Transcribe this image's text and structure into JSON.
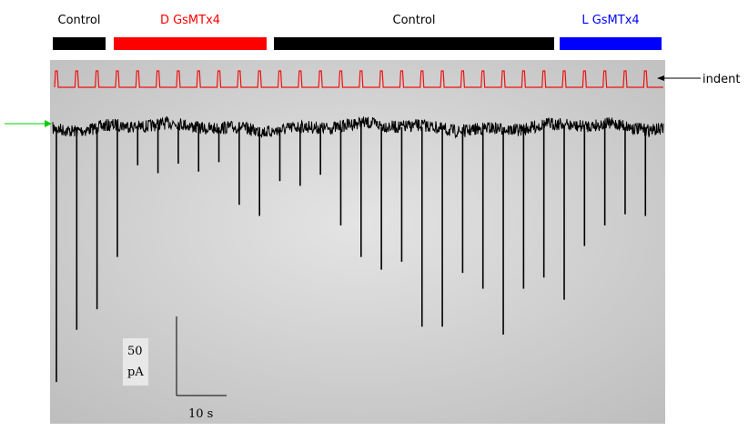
{
  "header": {
    "segments": [
      {
        "label": "Control",
        "color": "#000000"
      },
      {
        "label": "D GsMTx4",
        "color": "#ff0000"
      },
      {
        "label": "Control",
        "color": "#000000"
      },
      {
        "label": "L GsMTx4",
        "color": "#0000ff"
      }
    ]
  },
  "indent_label": "indent",
  "scale_bar": {
    "current_value": "50",
    "current_unit": "pA",
    "time": "10 s"
  },
  "trace": {
    "spike_times": [
      0,
      4,
      8,
      12,
      16,
      20,
      24,
      28,
      32,
      36,
      40,
      44,
      48,
      52,
      56,
      60,
      64,
      68,
      72,
      76,
      80,
      84,
      88,
      92,
      96,
      100,
      104,
      108,
      112,
      116
    ],
    "spike_amplitudes": [
      161,
      128,
      115,
      82,
      24,
      29,
      23,
      28,
      22,
      49,
      56,
      34,
      37,
      30,
      62,
      82,
      90,
      85,
      126,
      126,
      92,
      102,
      131,
      102,
      95,
      109,
      75,
      62,
      55,
      56
    ]
  }
}
